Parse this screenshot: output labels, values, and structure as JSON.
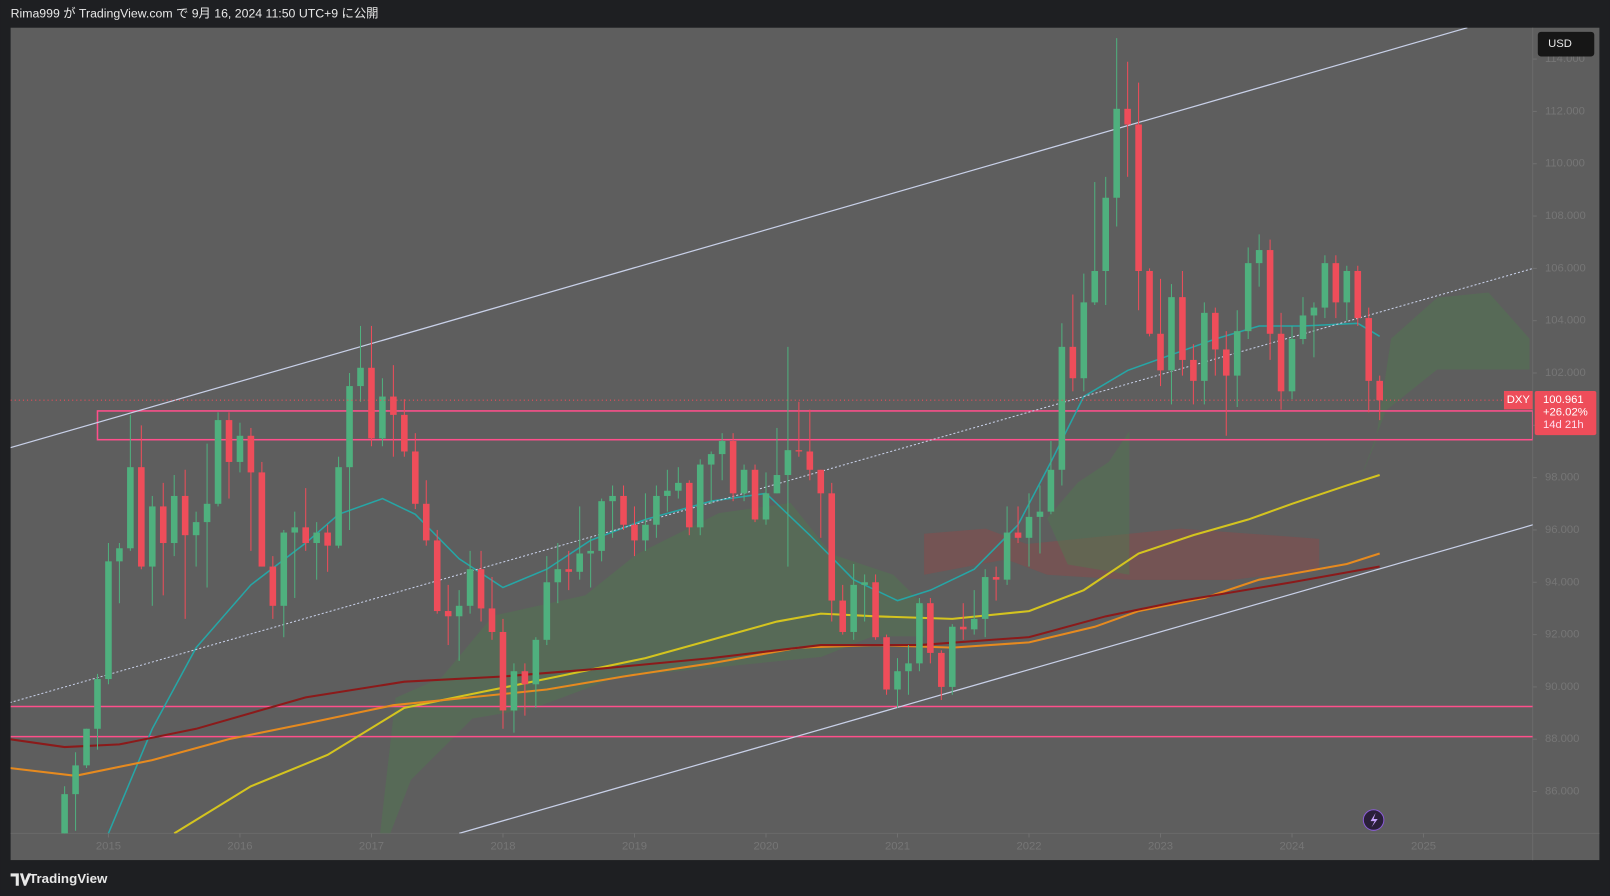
{
  "header": {
    "title": "Rima999 が TradingView.com で 9月 16, 2024 11:50 UTC+9 に公開"
  },
  "footer": {
    "brand": "TradingView"
  },
  "chart_data": {
    "type": "candlestick",
    "symbol": "DXY",
    "currency": "USD",
    "change": "+26.02%",
    "countdown": "14d 21h",
    "up_color": "#4fb07e",
    "down_color": "#ee4d5a",
    "xlim": [
      2014.256,
      2025.83
    ],
    "xticks": [
      2015,
      2016,
      2017,
      2018,
      2019,
      2020,
      2021,
      2022,
      2023,
      2024,
      2025
    ],
    "ylim": [
      84.4,
      115.2
    ],
    "yticks": [
      {
        "value": 86,
        "label": "86.000"
      },
      {
        "value": 88,
        "label": "88.000"
      },
      {
        "value": 90,
        "label": "90.000"
      },
      {
        "value": 92,
        "label": "92.000"
      },
      {
        "value": 94,
        "label": "94.000"
      },
      {
        "value": 96,
        "label": "96.000"
      },
      {
        "value": 98,
        "label": "98.000"
      },
      {
        "value": 100,
        "label": "100.000"
      },
      {
        "value": 102,
        "label": "102.000"
      },
      {
        "value": 104,
        "label": "104.000"
      },
      {
        "value": 106,
        "label": "106.000"
      },
      {
        "value": 108,
        "label": "108.000"
      },
      {
        "value": 110,
        "label": "110.000"
      },
      {
        "value": 112,
        "label": "112.000"
      },
      {
        "value": 114,
        "label": "114.000"
      }
    ],
    "x": [
      "2014-09",
      "2014-10",
      "2014-11",
      "2014-12",
      "2015-01",
      "2015-02",
      "2015-03",
      "2015-04",
      "2015-05",
      "2015-06",
      "2015-07",
      "2015-08",
      "2015-09",
      "2015-10",
      "2015-11",
      "2015-12",
      "2016-01",
      "2016-02",
      "2016-03",
      "2016-04",
      "2016-05",
      "2016-06",
      "2016-07",
      "2016-08",
      "2016-09",
      "2016-10",
      "2016-11",
      "2016-12",
      "2017-01",
      "2017-02",
      "2017-03",
      "2017-04",
      "2017-05",
      "2017-06",
      "2017-07",
      "2017-08",
      "2017-09",
      "2017-10",
      "2017-11",
      "2017-12",
      "2018-01",
      "2018-02",
      "2018-03",
      "2018-04",
      "2018-05",
      "2018-06",
      "2018-07",
      "2018-08",
      "2018-09",
      "2018-10",
      "2018-11",
      "2018-12",
      "2019-01",
      "2019-02",
      "2019-03",
      "2019-04",
      "2019-05",
      "2019-06",
      "2019-07",
      "2019-08",
      "2019-09",
      "2019-10",
      "2019-11",
      "2019-12",
      "2020-01",
      "2020-02",
      "2020-03",
      "2020-04",
      "2020-05",
      "2020-06",
      "2020-07",
      "2020-08",
      "2020-09",
      "2020-10",
      "2020-11",
      "2020-12",
      "2021-01",
      "2021-02",
      "2021-03",
      "2021-04",
      "2021-05",
      "2021-06",
      "2021-07",
      "2021-08",
      "2021-09",
      "2021-10",
      "2021-11",
      "2021-12",
      "2022-01",
      "2022-02",
      "2022-03",
      "2022-04",
      "2022-05",
      "2022-06",
      "2022-07",
      "2022-08",
      "2022-09",
      "2022-10",
      "2022-11",
      "2022-12",
      "2023-01",
      "2023-02",
      "2023-03",
      "2023-04",
      "2023-05",
      "2023-06",
      "2023-07",
      "2023-08",
      "2023-09",
      "2023-10",
      "2023-11",
      "2023-12",
      "2024-01",
      "2024-02",
      "2024-03",
      "2024-04",
      "2024-05",
      "2024-06",
      "2024-07",
      "2024-08",
      "2024-09"
    ],
    "ohlc": [
      [
        84.0,
        86.2,
        83.9,
        85.9
      ],
      [
        85.9,
        87.5,
        84.5,
        87.0
      ],
      [
        87.0,
        88.4,
        86.9,
        88.4
      ],
      [
        88.4,
        90.5,
        87.6,
        90.3
      ],
      [
        90.3,
        95.5,
        90.1,
        94.8
      ],
      [
        94.8,
        95.5,
        93.2,
        95.3
      ],
      [
        95.3,
        100.4,
        95.2,
        98.4
      ],
      [
        98.4,
        100.0,
        94.5,
        94.6
      ],
      [
        94.6,
        97.3,
        93.1,
        96.9
      ],
      [
        96.9,
        97.8,
        93.5,
        95.5
      ],
      [
        95.5,
        98.1,
        95.0,
        97.3
      ],
      [
        97.3,
        98.3,
        92.6,
        95.8
      ],
      [
        95.8,
        96.7,
        94.6,
        96.3
      ],
      [
        96.3,
        99.3,
        93.8,
        97.0
      ],
      [
        97.0,
        100.5,
        96.9,
        100.2
      ],
      [
        100.2,
        100.5,
        97.2,
        98.6
      ],
      [
        98.6,
        100.1,
        98.2,
        99.6
      ],
      [
        99.6,
        99.9,
        95.2,
        98.2
      ],
      [
        98.2,
        98.6,
        94.6,
        94.6
      ],
      [
        94.6,
        95.0,
        92.6,
        93.1
      ],
      [
        93.1,
        96.0,
        91.9,
        95.9
      ],
      [
        95.9,
        96.7,
        93.4,
        96.1
      ],
      [
        96.1,
        97.6,
        95.2,
        95.5
      ],
      [
        95.5,
        96.3,
        94.1,
        95.9
      ],
      [
        95.9,
        96.2,
        94.4,
        95.4
      ],
      [
        95.4,
        98.8,
        95.3,
        98.4
      ],
      [
        98.4,
        102.0,
        96.0,
        101.5
      ],
      [
        101.5,
        103.8,
        100.9,
        102.2
      ],
      [
        102.2,
        103.8,
        99.2,
        99.5
      ],
      [
        99.5,
        101.8,
        99.2,
        101.1
      ],
      [
        101.1,
        102.3,
        98.8,
        100.4
      ],
      [
        100.4,
        101.0,
        98.8,
        99.0
      ],
      [
        99.0,
        99.7,
        96.8,
        97.0
      ],
      [
        97.0,
        97.9,
        95.4,
        95.6
      ],
      [
        95.6,
        96.0,
        92.8,
        92.9
      ],
      [
        92.9,
        93.9,
        91.6,
        92.7
      ],
      [
        92.7,
        93.7,
        91.0,
        93.1
      ],
      [
        93.1,
        95.2,
        92.8,
        94.5
      ],
      [
        94.5,
        95.2,
        92.5,
        93.0
      ],
      [
        93.0,
        94.2,
        91.8,
        92.1
      ],
      [
        92.1,
        92.6,
        88.4,
        89.1
      ],
      [
        89.1,
        90.9,
        88.25,
        90.6
      ],
      [
        90.6,
        90.9,
        88.9,
        90.1
      ],
      [
        90.1,
        91.9,
        89.2,
        91.8
      ],
      [
        91.8,
        95.0,
        91.6,
        94.0
      ],
      [
        94.0,
        95.5,
        93.2,
        94.5
      ],
      [
        94.5,
        95.2,
        93.7,
        94.4
      ],
      [
        94.4,
        96.9,
        94.1,
        95.1
      ],
      [
        95.1,
        95.7,
        93.8,
        95.2
      ],
      [
        95.2,
        97.2,
        94.8,
        97.1
      ],
      [
        97.1,
        97.7,
        95.7,
        97.3
      ],
      [
        97.3,
        97.7,
        96.0,
        96.2
      ],
      [
        96.2,
        96.9,
        95.0,
        95.6
      ],
      [
        95.6,
        97.4,
        95.2,
        96.2
      ],
      [
        96.2,
        97.7,
        95.7,
        97.3
      ],
      [
        97.3,
        98.3,
        96.7,
        97.5
      ],
      [
        97.5,
        98.4,
        97.2,
        97.8
      ],
      [
        97.8,
        97.9,
        95.8,
        96.1
      ],
      [
        96.1,
        98.7,
        95.8,
        98.5
      ],
      [
        98.5,
        99.0,
        97.0,
        98.9
      ],
      [
        98.9,
        99.7,
        97.9,
        99.4
      ],
      [
        99.4,
        99.7,
        97.1,
        97.4
      ],
      [
        97.4,
        98.5,
        97.1,
        98.3
      ],
      [
        98.3,
        98.5,
        96.3,
        96.4
      ],
      [
        96.4,
        98.2,
        96.2,
        97.4
      ],
      [
        97.4,
        99.9,
        97.4,
        98.1
      ],
      [
        98.1,
        103.0,
        94.6,
        99.05
      ],
      [
        99.05,
        100.9,
        98.8,
        99.0
      ],
      [
        99.0,
        100.6,
        97.9,
        98.3
      ],
      [
        98.3,
        98.3,
        95.7,
        97.4
      ],
      [
        97.4,
        97.8,
        92.5,
        93.3
      ],
      [
        93.3,
        93.9,
        92.0,
        92.1
      ],
      [
        92.1,
        94.7,
        91.8,
        93.9
      ],
      [
        93.9,
        94.3,
        92.5,
        94.0
      ],
      [
        94.0,
        94.3,
        91.8,
        91.9
      ],
      [
        91.9,
        92.0,
        89.7,
        89.9
      ],
      [
        89.9,
        91.1,
        89.2,
        90.6
      ],
      [
        90.6,
        91.6,
        89.7,
        90.9
      ],
      [
        90.9,
        93.4,
        90.6,
        93.2
      ],
      [
        93.2,
        93.4,
        90.9,
        91.3
      ],
      [
        91.3,
        91.4,
        89.5,
        90.0
      ],
      [
        90.0,
        92.4,
        89.7,
        92.3
      ],
      [
        92.3,
        93.2,
        91.8,
        92.2
      ],
      [
        92.2,
        93.7,
        92.0,
        92.6
      ],
      [
        92.6,
        94.5,
        91.9,
        94.2
      ],
      [
        94.2,
        94.6,
        93.3,
        94.1
      ],
      [
        94.1,
        96.9,
        93.9,
        95.9
      ],
      [
        95.9,
        96.9,
        95.5,
        95.7
      ],
      [
        95.7,
        97.4,
        94.6,
        96.5
      ],
      [
        96.5,
        97.7,
        95.1,
        96.7
      ],
      [
        96.7,
        99.4,
        96.6,
        98.3
      ],
      [
        98.3,
        103.9,
        97.7,
        103.0
      ],
      [
        103.0,
        105.0,
        101.3,
        101.8
      ],
      [
        101.8,
        105.8,
        101.3,
        104.7
      ],
      [
        104.7,
        109.3,
        104.6,
        105.9
      ],
      [
        105.9,
        109.5,
        104.6,
        108.7
      ],
      [
        108.7,
        114.8,
        107.6,
        112.1
      ],
      [
        112.1,
        113.9,
        109.5,
        111.5
      ],
      [
        111.5,
        113.1,
        104.4,
        105.9
      ],
      [
        105.9,
        106.0,
        103.4,
        103.5
      ],
      [
        103.5,
        105.6,
        101.5,
        102.1
      ],
      [
        102.1,
        105.4,
        100.8,
        104.9
      ],
      [
        104.9,
        105.9,
        101.9,
        102.5
      ],
      [
        102.5,
        103.1,
        100.8,
        101.7
      ],
      [
        101.7,
        104.7,
        100.8,
        104.3
      ],
      [
        104.3,
        104.5,
        101.9,
        102.9
      ],
      [
        102.9,
        103.6,
        99.6,
        101.9
      ],
      [
        101.9,
        104.4,
        100.7,
        103.6
      ],
      [
        103.6,
        106.8,
        103.3,
        106.2
      ],
      [
        106.2,
        107.3,
        105.3,
        106.7
      ],
      [
        106.7,
        107.1,
        102.5,
        103.5
      ],
      [
        103.5,
        104.3,
        100.6,
        101.3
      ],
      [
        101.3,
        103.8,
        101.0,
        103.3
      ],
      [
        103.3,
        104.9,
        103.1,
        104.2
      ],
      [
        104.2,
        104.7,
        102.6,
        104.5
      ],
      [
        104.5,
        106.5,
        104.1,
        106.2
      ],
      [
        106.2,
        106.5,
        104.1,
        104.7
      ],
      [
        104.7,
        106.1,
        104.0,
        105.9
      ],
      [
        105.9,
        106.1,
        103.8,
        104.1
      ],
      [
        104.1,
        104.5,
        100.5,
        101.7
      ],
      [
        101.7,
        101.9,
        100.2,
        100.961
      ]
    ],
    "overlays": [
      {
        "color": "#26a6a6",
        "width": 1.5,
        "x": [
          "2015-01",
          "2015-05",
          "2015-09",
          "2016-02",
          "2016-07",
          "2016-10",
          "2017-02",
          "2017-05",
          "2017-09",
          "2018-01",
          "2018-05",
          "2018-09",
          "2019-02",
          "2019-08",
          "2020-01",
          "2020-05",
          "2020-09",
          "2021-01",
          "2021-04",
          "2021-08",
          "2021-12",
          "2022-03",
          "2022-06",
          "2022-10",
          "2023-02",
          "2023-06",
          "2023-10",
          "2024-02",
          "2024-07",
          "2024-09"
        ],
        "values": [
          84.4,
          88.4,
          91.5,
          93.9,
          95.5,
          96.6,
          97.2,
          96.6,
          94.9,
          93.8,
          94.5,
          95.6,
          96.4,
          97.1,
          97.4,
          95.8,
          94.1,
          93.3,
          93.7,
          94.5,
          96.2,
          98.6,
          101.1,
          102.1,
          102.7,
          103.3,
          103.8,
          103.8,
          103.9,
          103.4
        ]
      },
      {
        "color": "#d4c41f",
        "width": 2,
        "x": [
          "2015-07",
          "2016-02",
          "2016-09",
          "2017-04",
          "2017-11",
          "2018-06",
          "2019-02",
          "2019-08",
          "2020-02",
          "2020-06",
          "2020-11",
          "2021-06",
          "2022-01",
          "2022-06",
          "2022-11",
          "2023-04",
          "2023-09",
          "2024-01",
          "2024-06",
          "2024-09"
        ],
        "values": [
          84.4,
          86.2,
          87.4,
          89.2,
          89.8,
          90.4,
          91.1,
          91.8,
          92.5,
          92.8,
          92.7,
          92.6,
          92.9,
          93.7,
          95.1,
          95.8,
          96.4,
          97.0,
          97.7,
          98.1
        ]
      },
      {
        "color": "#e68a1f",
        "width": 2,
        "x": [
          "2014-04",
          "2014-10",
          "2015-05",
          "2015-12",
          "2016-07",
          "2017-03",
          "2017-10",
          "2018-05",
          "2018-12",
          "2019-08",
          "2020-04",
          "2020-11",
          "2021-06",
          "2022-01",
          "2022-07",
          "2022-11",
          "2023-05",
          "2023-10",
          "2024-06",
          "2024-09"
        ],
        "values": [
          86.9,
          86.6,
          87.2,
          88.0,
          88.6,
          89.3,
          89.6,
          89.9,
          90.4,
          90.9,
          91.5,
          91.6,
          91.5,
          91.7,
          92.3,
          92.9,
          93.4,
          94.1,
          94.7,
          95.1
        ]
      },
      {
        "color": "#8b1a1a",
        "width": 2,
        "x": [
          "2014-04",
          "2014-09",
          "2015-02",
          "2015-09",
          "2016-07",
          "2017-04",
          "2018-01",
          "2018-10",
          "2019-08",
          "2020-06",
          "2021-03",
          "2022-01",
          "2022-08",
          "2023-03",
          "2024-01",
          "2024-09"
        ],
        "values": [
          88.0,
          87.7,
          87.8,
          88.4,
          89.6,
          90.2,
          90.4,
          90.7,
          91.1,
          91.6,
          91.6,
          91.9,
          92.7,
          93.3,
          94.0,
          94.6
        ]
      },
      {
        "color": "#c8d0e8",
        "width": 1.2,
        "x": [
          "2014-04",
          "2025-05"
        ],
        "values": [
          99.14,
          115.2
        ]
      },
      {
        "color": "#c8d0e8",
        "width": 1.2,
        "x": [
          "2017-09",
          "2025-11"
        ],
        "values": [
          84.4,
          96.2
        ]
      },
      {
        "color": "#c8d0e8",
        "width": 1,
        "dash": true,
        "x": [
          "2014-04",
          "2025-11"
        ],
        "values": [
          89.4,
          106.0
        ]
      }
    ],
    "levels": [
      {
        "color": "#ff4f8b",
        "values": [
          89.25
        ]
      },
      {
        "color": "#ff4f8b",
        "values": [
          88.1
        ]
      }
    ],
    "zone": {
      "color": "#ff4f8b",
      "x": "2014-12",
      "values": [
        100.55,
        99.45
      ]
    }
  }
}
